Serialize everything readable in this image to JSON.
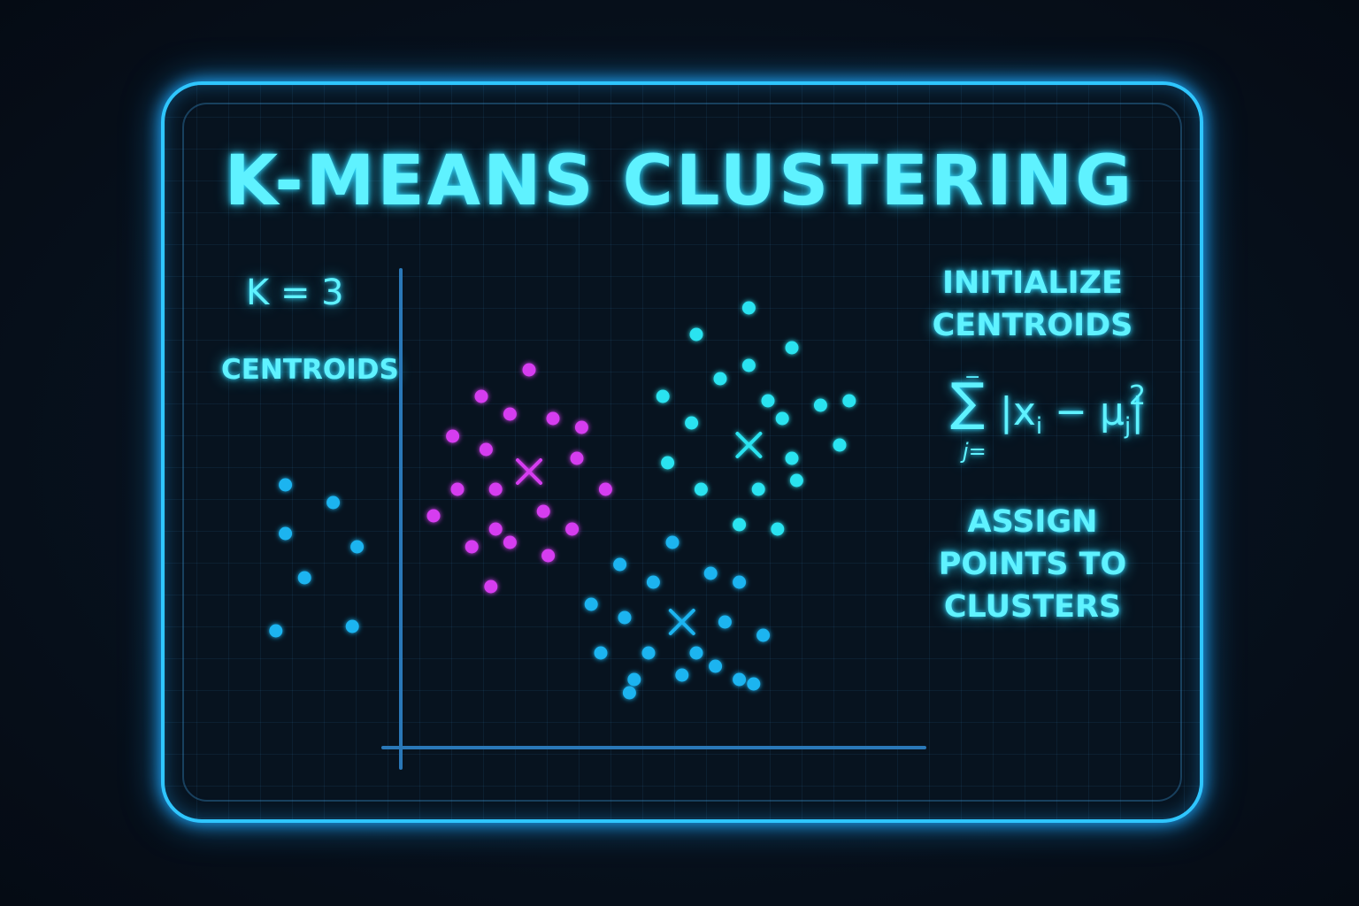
{
  "title": "K-MEANS CLUSTERING",
  "k_label": "K = 3",
  "centroids_label": "CENTROIDS",
  "step_initialize": "INITIALIZE\nCENTROIDS",
  "formula": {
    "sum_symbol": "∑",
    "sum_bar": "−",
    "sum_subscript": "j=",
    "body_prefix": "|x",
    "body_i": "i",
    "body_minus": " − μ",
    "body_j": "j",
    "body_suffix": "|",
    "exponent": "2"
  },
  "step_assign": "ASSIGN\nPOINTS TO\nCLUSTERS",
  "colors": {
    "accent": "#2fc6ff",
    "text": "#5ff2ff",
    "magenta": "#d63cf0",
    "cyan": "#29e3f0",
    "blue": "#1ab4f0",
    "axis": "#2a78b8"
  },
  "chart_data": {
    "type": "scatter",
    "title": "",
    "xlabel": "",
    "ylabel": "",
    "grid": true,
    "legend": "none",
    "xlim": [
      0,
      100
    ],
    "ylim": [
      0,
      100
    ],
    "series": [
      {
        "color": "#d63cf0",
        "centroid": [
          25,
          57
        ],
        "points": [
          [
            25,
            80
          ],
          [
            15,
            74
          ],
          [
            21,
            70
          ],
          [
            30,
            69
          ],
          [
            36,
            67
          ],
          [
            9,
            65
          ],
          [
            16,
            62
          ],
          [
            35,
            60
          ],
          [
            10,
            53
          ],
          [
            18,
            53
          ],
          [
            41,
            53
          ],
          [
            5,
            47
          ],
          [
            28,
            48
          ],
          [
            18,
            44
          ],
          [
            34,
            44
          ],
          [
            13,
            40
          ],
          [
            21,
            41
          ],
          [
            29,
            38
          ],
          [
            17,
            31
          ]
        ]
      },
      {
        "color": "#29e3f0",
        "centroid": [
          71,
          63
        ],
        "points": [
          [
            71,
            94
          ],
          [
            60,
            88
          ],
          [
            80,
            85
          ],
          [
            71,
            81
          ],
          [
            65,
            78
          ],
          [
            53,
            74
          ],
          [
            75,
            73
          ],
          [
            86,
            72
          ],
          [
            92,
            73
          ],
          [
            59,
            68
          ],
          [
            78,
            69
          ],
          [
            90,
            63
          ],
          [
            54,
            59
          ],
          [
            80,
            60
          ],
          [
            81,
            55
          ],
          [
            61,
            53
          ],
          [
            73,
            53
          ],
          [
            69,
            45
          ],
          [
            77,
            44
          ]
        ]
      },
      {
        "color": "#1ab4f0",
        "centroid": [
          57,
          23
        ],
        "points": [
          [
            55,
            41
          ],
          [
            44,
            36
          ],
          [
            51,
            32
          ],
          [
            63,
            34
          ],
          [
            69,
            32
          ],
          [
            38,
            27
          ],
          [
            45,
            24
          ],
          [
            66,
            23
          ],
          [
            74,
            20
          ],
          [
            40,
            16
          ],
          [
            50,
            16
          ],
          [
            60,
            16
          ],
          [
            64,
            13
          ],
          [
            47,
            10
          ],
          [
            57,
            11
          ],
          [
            69,
            10
          ],
          [
            46,
            7
          ],
          [
            72,
            9
          ]
        ]
      }
    ],
    "unassigned_points": [
      [
        -26,
        54
      ],
      [
        -16,
        50
      ],
      [
        -26,
        43
      ],
      [
        -11,
        40
      ],
      [
        -22,
        33
      ],
      [
        -28,
        21
      ],
      [
        -12,
        22
      ]
    ]
  }
}
